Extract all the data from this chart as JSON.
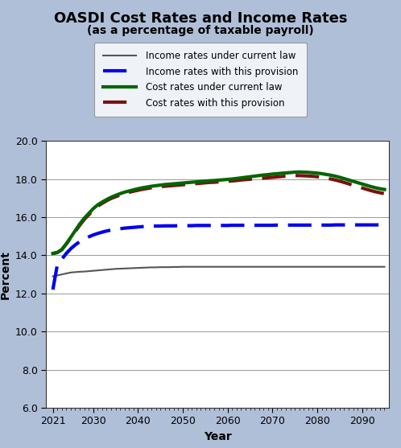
{
  "title": "OASDI Cost Rates and Income Rates",
  "subtitle": "(as a percentage of taxable payroll)",
  "xlabel": "Year",
  "ylabel": "Percent",
  "bg_color": "#b0bfd8",
  "plot_bg_color": "#ffffff",
  "ylim": [
    6.0,
    20.0
  ],
  "yticks": [
    6.0,
    8.0,
    10.0,
    12.0,
    14.0,
    16.0,
    18.0,
    20.0
  ],
  "xticks": [
    2021,
    2030,
    2040,
    2050,
    2060,
    2070,
    2080,
    2090
  ],
  "xlim": [
    2019.5,
    2096
  ],
  "years": [
    2021,
    2022,
    2023,
    2024,
    2025,
    2026,
    2027,
    2028,
    2029,
    2030,
    2031,
    2032,
    2033,
    2034,
    2035,
    2036,
    2037,
    2038,
    2039,
    2040,
    2041,
    2042,
    2043,
    2044,
    2045,
    2046,
    2047,
    2048,
    2049,
    2050,
    2051,
    2052,
    2053,
    2054,
    2055,
    2056,
    2057,
    2058,
    2059,
    2060,
    2061,
    2062,
    2063,
    2064,
    2065,
    2066,
    2067,
    2068,
    2069,
    2070,
    2071,
    2072,
    2073,
    2074,
    2075,
    2076,
    2077,
    2078,
    2079,
    2080,
    2081,
    2082,
    2083,
    2084,
    2085,
    2086,
    2087,
    2088,
    2089,
    2090,
    2091,
    2092,
    2093,
    2094,
    2095
  ],
  "income_current_law": [
    12.9,
    12.95,
    13.0,
    13.05,
    13.1,
    13.12,
    13.14,
    13.15,
    13.17,
    13.19,
    13.21,
    13.23,
    13.25,
    13.27,
    13.29,
    13.3,
    13.31,
    13.32,
    13.33,
    13.34,
    13.35,
    13.36,
    13.37,
    13.37,
    13.38,
    13.38,
    13.38,
    13.39,
    13.39,
    13.4,
    13.4,
    13.4,
    13.4,
    13.4,
    13.4,
    13.4,
    13.4,
    13.4,
    13.4,
    13.4,
    13.4,
    13.4,
    13.4,
    13.4,
    13.4,
    13.4,
    13.4,
    13.4,
    13.4,
    13.4,
    13.4,
    13.4,
    13.4,
    13.4,
    13.4,
    13.4,
    13.4,
    13.4,
    13.4,
    13.4,
    13.4,
    13.4,
    13.4,
    13.4,
    13.4,
    13.4,
    13.4,
    13.4,
    13.4,
    13.4,
    13.4,
    13.4,
    13.4,
    13.4,
    13.4
  ],
  "income_provision": [
    12.2,
    13.5,
    13.8,
    14.1,
    14.35,
    14.55,
    14.72,
    14.85,
    14.97,
    15.07,
    15.15,
    15.22,
    15.28,
    15.33,
    15.37,
    15.4,
    15.43,
    15.45,
    15.47,
    15.49,
    15.51,
    15.52,
    15.53,
    15.54,
    15.54,
    15.55,
    15.55,
    15.55,
    15.56,
    15.56,
    15.56,
    15.56,
    15.57,
    15.57,
    15.57,
    15.57,
    15.57,
    15.57,
    15.57,
    15.57,
    15.58,
    15.58,
    15.58,
    15.58,
    15.58,
    15.58,
    15.58,
    15.58,
    15.58,
    15.58,
    15.59,
    15.59,
    15.59,
    15.59,
    15.59,
    15.59,
    15.59,
    15.59,
    15.59,
    15.59,
    15.59,
    15.59,
    15.59,
    15.6,
    15.6,
    15.6,
    15.6,
    15.6,
    15.6,
    15.6,
    15.6,
    15.6,
    15.6,
    15.6,
    15.6
  ],
  "cost_current_law": [
    14.1,
    14.15,
    14.3,
    14.6,
    14.95,
    15.3,
    15.65,
    15.95,
    16.2,
    16.45,
    16.65,
    16.8,
    16.93,
    17.05,
    17.15,
    17.24,
    17.32,
    17.38,
    17.44,
    17.5,
    17.55,
    17.59,
    17.63,
    17.66,
    17.69,
    17.72,
    17.74,
    17.76,
    17.78,
    17.8,
    17.82,
    17.84,
    17.86,
    17.88,
    17.9,
    17.92,
    17.93,
    17.95,
    17.97,
    17.99,
    18.01,
    18.04,
    18.07,
    18.1,
    18.13,
    18.16,
    18.19,
    18.22,
    18.24,
    18.27,
    18.29,
    18.31,
    18.33,
    18.35,
    18.37,
    18.38,
    18.37,
    18.36,
    18.34,
    18.32,
    18.29,
    18.25,
    18.21,
    18.16,
    18.1,
    18.03,
    17.96,
    17.89,
    17.82,
    17.75,
    17.68,
    17.61,
    17.55,
    17.5,
    17.46
  ],
  "cost_provision": [
    14.1,
    14.15,
    14.3,
    14.6,
    14.93,
    15.25,
    15.58,
    15.88,
    16.13,
    16.37,
    16.58,
    16.73,
    16.87,
    16.99,
    17.08,
    17.17,
    17.25,
    17.31,
    17.37,
    17.42,
    17.47,
    17.51,
    17.55,
    17.58,
    17.61,
    17.63,
    17.65,
    17.67,
    17.69,
    17.71,
    17.73,
    17.75,
    17.77,
    17.79,
    17.81,
    17.83,
    17.84,
    17.86,
    17.88,
    17.89,
    17.91,
    17.93,
    17.96,
    17.98,
    18.0,
    18.02,
    18.04,
    18.06,
    18.08,
    18.1,
    18.12,
    18.14,
    18.16,
    18.17,
    18.19,
    18.19,
    18.18,
    18.17,
    18.15,
    18.13,
    18.09,
    18.05,
    18.01,
    17.96,
    17.9,
    17.83,
    17.76,
    17.68,
    17.61,
    17.54,
    17.47,
    17.4,
    17.34,
    17.29,
    17.24
  ],
  "income_current_law_color": "#555555",
  "income_provision_color": "#0000ee",
  "cost_current_law_color": "#006600",
  "cost_provision_color": "#7b1010",
  "legend_labels": [
    "Income rates under current law",
    "Income rates with this provision",
    "Cost rates under current law",
    "Cost rates with this provision"
  ],
  "title_fontsize": 13,
  "subtitle_fontsize": 10,
  "axis_label_fontsize": 10,
  "tick_fontsize": 9
}
